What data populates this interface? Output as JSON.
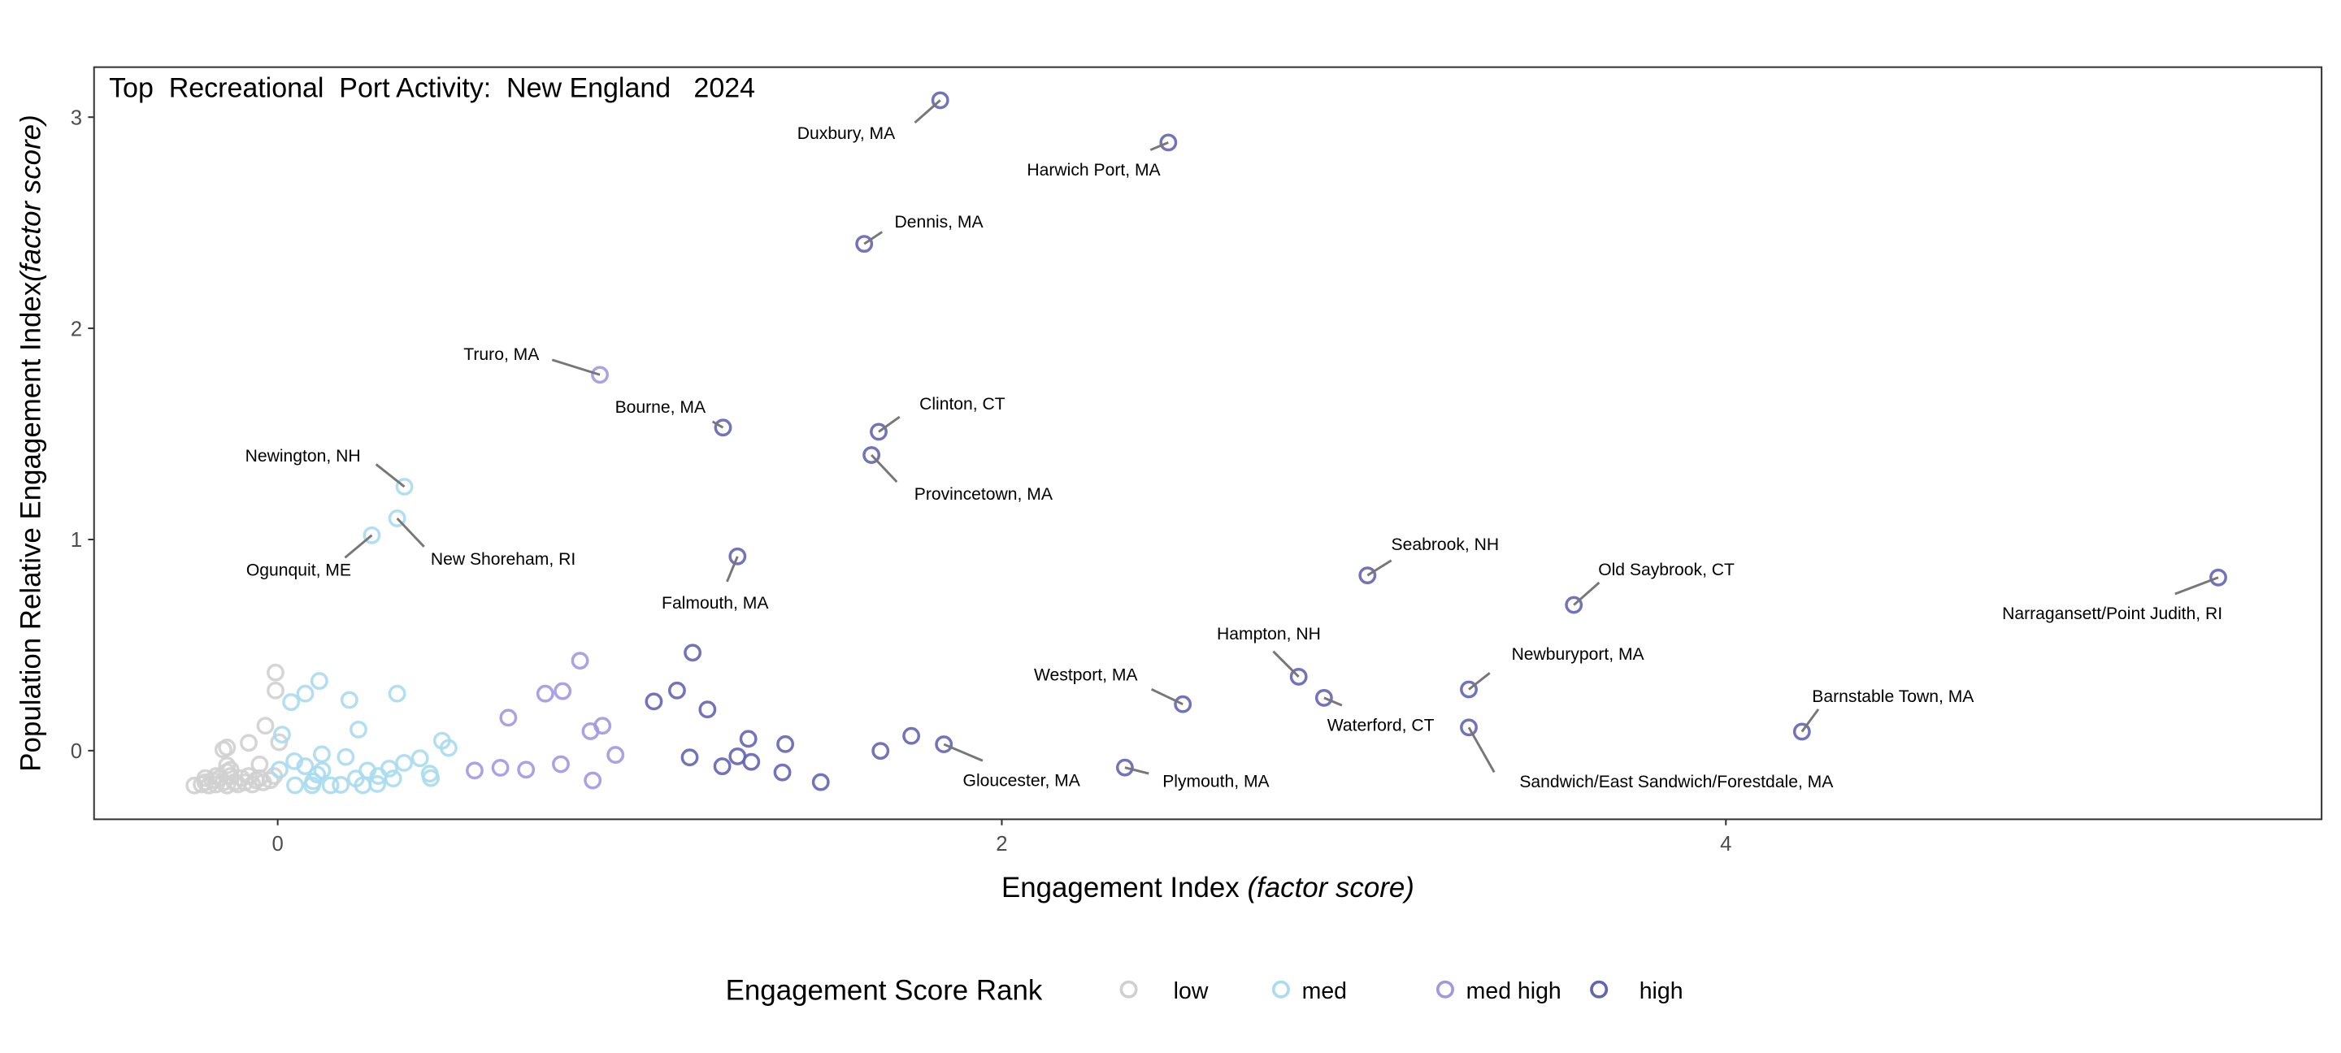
{
  "chart_data": {
    "type": "scatter",
    "title": "Top  Recreational  Port Activity:  New England   2024",
    "xlabel": "Engagement Index ",
    "xlabel_italic": "(factor score)",
    "ylabel": "Population Relative Engagement Index",
    "ylabel_italic": "(factor score)",
    "xlim": [
      -0.5,
      5.65
    ],
    "ylim": [
      -0.32,
      3.22
    ],
    "xticks": [
      "0",
      "2",
      "4"
    ],
    "xtick_values": [
      0,
      2,
      4
    ],
    "yticks": [
      "0",
      "1",
      "2",
      "3"
    ],
    "ytick_values": [
      0,
      1,
      2,
      3
    ],
    "grid": false,
    "legend": {
      "title": "Engagement Score Rank",
      "position": "bottom",
      "entries": [
        "low",
        "med",
        "med high",
        "high"
      ]
    },
    "series": [
      {
        "name": "low",
        "color": "#d0d0d0",
        "points": [
          {
            "x": -0.006,
            "y": 0.37
          },
          {
            "x": -0.006,
            "y": 0.285
          },
          {
            "x": -0.034,
            "y": 0.118
          },
          {
            "x": -0.08,
            "y": 0.037
          },
          {
            "x": -0.14,
            "y": 0.015
          },
          {
            "x": -0.15,
            "y": 0.005
          },
          {
            "x": 0.004,
            "y": 0.04
          },
          {
            "x": -0.05,
            "y": -0.065
          },
          {
            "x": -0.14,
            "y": -0.07
          },
          {
            "x": -0.23,
            "y": -0.165
          },
          {
            "x": -0.21,
            "y": -0.16
          },
          {
            "x": -0.2,
            "y": -0.15
          },
          {
            "x": -0.19,
            "y": -0.165
          },
          {
            "x": -0.18,
            "y": -0.14
          },
          {
            "x": -0.17,
            "y": -0.16
          },
          {
            "x": -0.16,
            "y": -0.13
          },
          {
            "x": -0.15,
            "y": -0.15
          },
          {
            "x": -0.14,
            "y": -0.165
          },
          {
            "x": -0.13,
            "y": -0.12
          },
          {
            "x": -0.12,
            "y": -0.15
          },
          {
            "x": -0.11,
            "y": -0.16
          },
          {
            "x": -0.1,
            "y": -0.13
          },
          {
            "x": -0.09,
            "y": -0.15
          },
          {
            "x": -0.08,
            "y": -0.12
          },
          {
            "x": -0.07,
            "y": -0.16
          },
          {
            "x": -0.06,
            "y": -0.14
          },
          {
            "x": -0.05,
            "y": -0.13
          },
          {
            "x": -0.04,
            "y": -0.15
          },
          {
            "x": -0.02,
            "y": -0.14
          },
          {
            "x": -0.14,
            "y": -0.1
          },
          {
            "x": -0.13,
            "y": -0.09
          },
          {
            "x": -0.17,
            "y": -0.12
          },
          {
            "x": -0.2,
            "y": -0.13
          },
          {
            "x": -0.01,
            "y": -0.12
          }
        ]
      },
      {
        "name": "med",
        "color": "#a9dcf0",
        "points": [
          {
            "x": 0.115,
            "y": 0.33
          },
          {
            "x": 0.076,
            "y": 0.27
          },
          {
            "x": 0.037,
            "y": 0.23
          },
          {
            "x": 0.198,
            "y": 0.24
          },
          {
            "x": 0.33,
            "y": 0.27
          },
          {
            "x": 0.012,
            "y": 0.076
          },
          {
            "x": 0.223,
            "y": 0.1
          },
          {
            "x": 0.454,
            "y": 0.047
          },
          {
            "x": 0.472,
            "y": 0.013
          },
          {
            "x": 0.122,
            "y": -0.017
          },
          {
            "x": 0.046,
            "y": -0.05
          },
          {
            "x": 0.188,
            "y": -0.03
          },
          {
            "x": 0.005,
            "y": -0.09
          },
          {
            "x": 0.393,
            "y": -0.036
          },
          {
            "x": 0.349,
            "y": -0.058
          },
          {
            "x": 0.076,
            "y": -0.074
          },
          {
            "x": 0.123,
            "y": -0.094
          },
          {
            "x": 0.109,
            "y": -0.113
          },
          {
            "x": 0.248,
            "y": -0.094
          },
          {
            "x": 0.308,
            "y": -0.085
          },
          {
            "x": 0.42,
            "y": -0.109
          },
          {
            "x": 0.423,
            "y": -0.13
          },
          {
            "x": 0.216,
            "y": -0.132
          },
          {
            "x": 0.278,
            "y": -0.12
          },
          {
            "x": 0.319,
            "y": -0.132
          },
          {
            "x": 0.048,
            "y": -0.164
          },
          {
            "x": 0.095,
            "y": -0.164
          },
          {
            "x": 0.174,
            "y": -0.162
          },
          {
            "x": 0.146,
            "y": -0.164
          },
          {
            "x": 0.235,
            "y": -0.164
          },
          {
            "x": 0.275,
            "y": -0.158
          },
          {
            "x": 0.098,
            "y": -0.145
          },
          {
            "x": 0.35,
            "y": 1.25,
            "label": "Newington, NH"
          },
          {
            "x": 0.33,
            "y": 1.1,
            "label": "New Shoreham, RI"
          },
          {
            "x": 0.26,
            "y": 1.02,
            "label": "Ogunquit, ME"
          }
        ]
      },
      {
        "name": "med high",
        "color": "#a198e2",
        "points": [
          {
            "x": 0.835,
            "y": 0.426
          },
          {
            "x": 0.739,
            "y": 0.27
          },
          {
            "x": 0.787,
            "y": 0.282
          },
          {
            "x": 0.637,
            "y": 0.156
          },
          {
            "x": 0.864,
            "y": 0.092
          },
          {
            "x": 0.897,
            "y": 0.118
          },
          {
            "x": 0.933,
            "y": -0.02
          },
          {
            "x": 0.782,
            "y": -0.064
          },
          {
            "x": 0.544,
            "y": -0.094
          },
          {
            "x": 0.615,
            "y": -0.081
          },
          {
            "x": 0.686,
            "y": -0.09
          },
          {
            "x": 0.87,
            "y": -0.141
          },
          {
            "x": 0.89,
            "y": 1.78,
            "label": "Truro, MA"
          }
        ]
      },
      {
        "name": "high",
        "color": "#6464b4",
        "points": [
          {
            "x": 1.146,
            "y": 0.464
          },
          {
            "x": 1.103,
            "y": 0.285
          },
          {
            "x": 1.039,
            "y": 0.233
          },
          {
            "x": 1.187,
            "y": 0.195
          },
          {
            "x": 1.3,
            "y": 0.056
          },
          {
            "x": 1.402,
            "y": 0.031
          },
          {
            "x": 1.665,
            "y": -0.001
          },
          {
            "x": 1.138,
            "y": -0.032
          },
          {
            "x": 1.27,
            "y": -0.027
          },
          {
            "x": 1.308,
            "y": -0.053
          },
          {
            "x": 1.228,
            "y": -0.074
          },
          {
            "x": 1.394,
            "y": -0.103
          },
          {
            "x": 1.5,
            "y": -0.149
          },
          {
            "x": 1.75,
            "y": 0.07
          },
          {
            "x": 1.83,
            "y": 3.08,
            "label": "Duxbury, MA"
          },
          {
            "x": 2.46,
            "y": 2.88,
            "label": "Harwich Port, MA"
          },
          {
            "x": 1.62,
            "y": 2.4,
            "label": "Dennis, MA"
          },
          {
            "x": 1.23,
            "y": 1.53,
            "label": "Bourne, MA"
          },
          {
            "x": 1.66,
            "y": 1.51,
            "label": "Clinton, CT"
          },
          {
            "x": 1.64,
            "y": 1.4,
            "label": "Provincetown, MA"
          },
          {
            "x": 1.27,
            "y": 0.92,
            "label": "Falmouth, MA"
          },
          {
            "x": 3.01,
            "y": 0.83,
            "label": "Seabrook, NH"
          },
          {
            "x": 3.58,
            "y": 0.69,
            "label": "Old Saybrook, CT"
          },
          {
            "x": 5.36,
            "y": 0.82,
            "label": "Narragansett/Point Judith, RI"
          },
          {
            "x": 2.82,
            "y": 0.35,
            "label": "Hampton, NH"
          },
          {
            "x": 2.5,
            "y": 0.22,
            "label": "Westport, MA"
          },
          {
            "x": 3.29,
            "y": 0.29,
            "label": "Newburyport, MA"
          },
          {
            "x": 2.89,
            "y": 0.25,
            "label": "Waterford, CT"
          },
          {
            "x": 3.29,
            "y": 0.11,
            "label": "Sandwich/East Sandwich/Forestdale, MA"
          },
          {
            "x": 4.21,
            "y": 0.09,
            "label": "Barnstable Town, MA"
          },
          {
            "x": 1.84,
            "y": 0.03,
            "label": "Gloucester, MA"
          },
          {
            "x": 2.34,
            "y": -0.08,
            "label": "Plymouth, MA"
          }
        ]
      }
    ]
  }
}
